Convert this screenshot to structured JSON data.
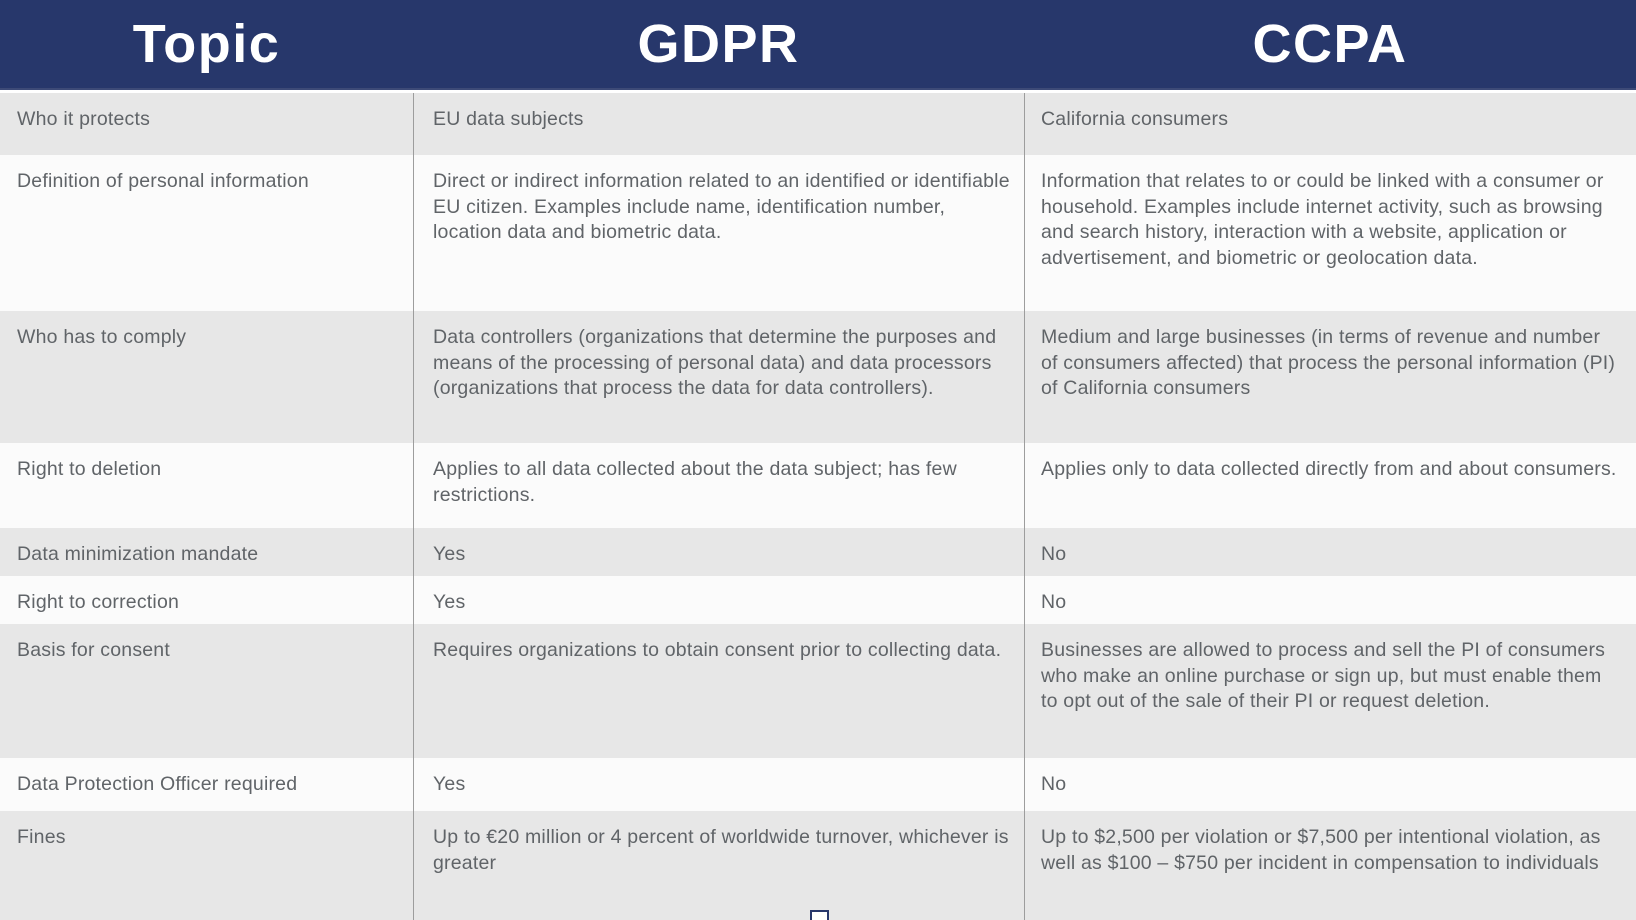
{
  "header": {
    "columns": [
      "Topic",
      "GDPR",
      "CCPA"
    ]
  },
  "rows": [
    {
      "topic": "Who it protects",
      "gdpr": "EU data subjects",
      "ccpa": "California consumers"
    },
    {
      "topic": "Definition of personal information",
      "gdpr": "Direct or indirect information related to an identified or identifiable EU citizen. Examples include name, identification number, location data and biometric data.",
      "ccpa": "Information that relates to or could be linked with a consumer or household. Examples include internet activity, such as browsing and search history, interaction with a website, application or advertisement, and biometric or geolocation data."
    },
    {
      "topic": "Who has to comply",
      "gdpr": "Data controllers (organizations that determine the purposes and means of the processing of personal data) and data processors (organizations that process the data for data controllers).",
      "ccpa": "Medium and large businesses (in terms of revenue and number of consumers affected) that process the personal information (PI) of California consumers"
    },
    {
      "topic": "Right to deletion",
      "gdpr": "Applies to all data collected about the data subject; has few restrictions.",
      "ccpa": "Applies only to data collected directly from and about consumers."
    },
    {
      "topic": "Data minimization mandate",
      "gdpr": "Yes",
      "ccpa": "No"
    },
    {
      "topic": "Right to correction",
      "gdpr": "Yes",
      "ccpa": "No"
    },
    {
      "topic": "Basis for consent",
      "gdpr": "Requires organizations to obtain consent prior to collecting data.",
      "ccpa": "Businesses are allowed to process and sell the PI of consumers who make an online purchase or sign up, but must enable them to opt out of the sale of their PI or request deletion."
    },
    {
      "topic": "Data Protection Officer required",
      "gdpr": "Yes",
      "ccpa": "No"
    },
    {
      "topic": "Fines",
      "gdpr": "Up to €20 million or 4 percent of worldwide turnover, whichever is greater",
      "ccpa": "Up to $2,500 per violation or $7,500 per intentional violation, as well as $100 – $750 per incident in compensation to individuals"
    }
  ],
  "icons": {
    "selection_handle": "resize-handle-square"
  },
  "colors": {
    "header_bg": "#27376b",
    "header_text": "#ffffff",
    "row_shaded_bg": "#e7e7e7",
    "row_plain_bg": "#fbfbfb",
    "cell_text": "#606468",
    "column_divider": "#9d9d9d",
    "handle_border": "#27376b"
  }
}
